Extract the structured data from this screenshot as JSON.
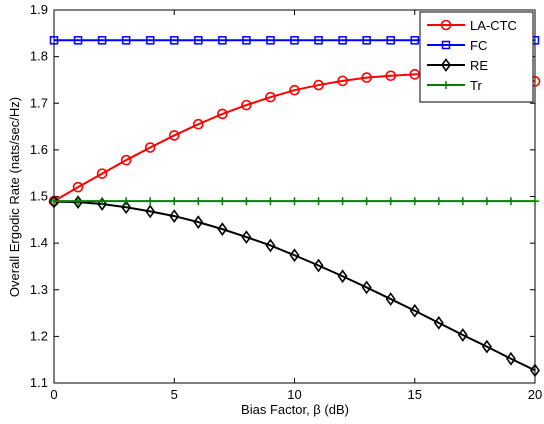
{
  "chart_data": {
    "type": "line",
    "xlabel": "Bias Factor, β (dB)",
    "ylabel": "Overall Ergodic Rate (nats/sec/Hz)",
    "xlim": [
      0,
      20
    ],
    "ylim": [
      1.1,
      1.9
    ],
    "xticks": [
      "0",
      "5",
      "10",
      "15",
      "20"
    ],
    "yticks": [
      "1.1",
      "1.2",
      "1.3",
      "1.4",
      "1.5",
      "1.6",
      "1.7",
      "1.8",
      "1.9"
    ],
    "grid": false,
    "legend_position": "top-right",
    "x": [
      0,
      1,
      2,
      3,
      4,
      5,
      6,
      7,
      8,
      9,
      10,
      11,
      12,
      13,
      14,
      15,
      16,
      17,
      18,
      19,
      20
    ],
    "series": [
      {
        "name": "LA-CTC",
        "color": "#ff0000",
        "marker": "circle",
        "values": [
          1.49,
          1.52,
          1.549,
          1.578,
          1.605,
          1.631,
          1.655,
          1.677,
          1.696,
          1.713,
          1.728,
          1.739,
          1.748,
          1.755,
          1.759,
          1.762,
          1.763,
          1.764,
          1.762,
          1.76,
          1.747
        ]
      },
      {
        "name": "FC",
        "color": "#0000ff",
        "marker": "square",
        "values": [
          1.835,
          1.835,
          1.835,
          1.835,
          1.835,
          1.835,
          1.835,
          1.835,
          1.835,
          1.835,
          1.835,
          1.835,
          1.835,
          1.835,
          1.835,
          1.835,
          1.835,
          1.835,
          1.835,
          1.835,
          1.835
        ]
      },
      {
        "name": "RE",
        "color": "#000000",
        "marker": "diamond",
        "values": [
          1.489,
          1.488,
          1.484,
          1.477,
          1.468,
          1.458,
          1.445,
          1.43,
          1.413,
          1.395,
          1.374,
          1.352,
          1.329,
          1.305,
          1.28,
          1.255,
          1.229,
          1.203,
          1.178,
          1.152,
          1.127
        ]
      },
      {
        "name": "Tr",
        "color": "#008000",
        "marker": "plus",
        "values": [
          1.49,
          1.49,
          1.49,
          1.49,
          1.49,
          1.49,
          1.49,
          1.49,
          1.49,
          1.49,
          1.49,
          1.49,
          1.49,
          1.49,
          1.49,
          1.49,
          1.49,
          1.49,
          1.49,
          1.49,
          1.49
        ]
      }
    ]
  }
}
